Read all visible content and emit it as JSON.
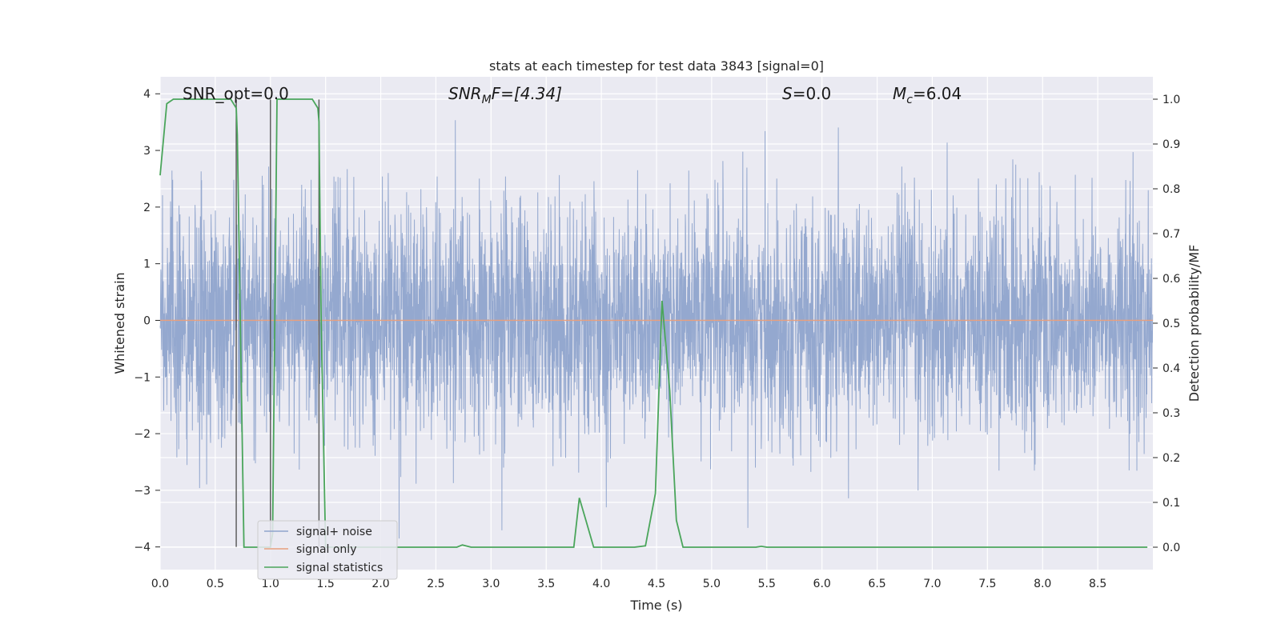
{
  "chart_data": {
    "type": "line",
    "title": "stats at each timestep for test data 3843 [signal=0]",
    "xlabel": "Time (s)",
    "ylabel": "Whitened strain",
    "y2label": "Detection probability/MF",
    "xlim": [
      0,
      9.0
    ],
    "ylim": [
      -4.4,
      4.3
    ],
    "y2lim": [
      -0.05,
      1.05
    ],
    "xticks": [
      "0.0",
      "0.5",
      "1.0",
      "1.5",
      "2.0",
      "2.5",
      "3.0",
      "3.5",
      "4.0",
      "4.5",
      "5.0",
      "5.5",
      "6.0",
      "6.5",
      "7.0",
      "7.5",
      "8.0",
      "8.5"
    ],
    "yticks": [
      "−4",
      "−3",
      "−2",
      "−1",
      "0",
      "1",
      "2",
      "3",
      "4"
    ],
    "y2ticks": [
      "0.0",
      "0.1",
      "0.2",
      "0.3",
      "0.4",
      "0.5",
      "0.6",
      "0.7",
      "0.8",
      "0.9",
      "1.0"
    ],
    "grid": true,
    "legend_position": "lower-left",
    "annotations": {
      "snr_opt": "SNR_opt=0.0",
      "snr_mf_base": "SNR",
      "snr_mf_sub": "M",
      "snr_mf_rest": "F=[4.34]",
      "s_italic": "S",
      "s_rest": "=0.0",
      "mc_base": "M",
      "mc_sub": "c",
      "mc_rest": "=6.04"
    },
    "vertical_lines_x": [
      0.69,
      1.0,
      1.44
    ],
    "series": [
      {
        "name": "signal+ noise",
        "color": "#8fa4cc",
        "axis": "left",
        "noise_std": 1.0,
        "noise_points": 4096,
        "duration": 9.0
      },
      {
        "name": "signal only",
        "color": "#e8a07e",
        "axis": "left",
        "values_constant": 0.0
      },
      {
        "name": "signal statistics",
        "color": "#4aa55b",
        "axis": "right",
        "x": [
          0.0,
          0.06,
          0.12,
          0.2,
          0.3,
          0.4,
          0.5,
          0.6,
          0.64,
          0.69,
          0.7,
          0.76,
          0.82,
          0.9,
          0.97,
          1.0,
          1.02,
          1.06,
          1.1,
          1.2,
          1.3,
          1.38,
          1.43,
          1.44,
          1.46,
          1.5,
          1.56,
          1.7,
          2.0,
          2.5,
          2.69,
          2.74,
          2.82,
          3.0,
          3.5,
          3.75,
          3.8,
          3.86,
          3.93,
          4.0,
          4.3,
          4.4,
          4.49,
          4.55,
          4.62,
          4.68,
          4.74,
          4.82,
          5.0,
          5.4,
          5.45,
          5.5,
          6.0,
          7.0,
          8.0,
          8.5,
          8.95
        ],
        "values": [
          0.83,
          0.99,
          1.0,
          1.0,
          1.0,
          1.0,
          1.0,
          1.0,
          1.0,
          0.98,
          0.92,
          0.0,
          0.0,
          0.0,
          0.0,
          0.0,
          0.03,
          1.0,
          1.0,
          1.0,
          1.0,
          1.0,
          0.98,
          0.95,
          0.5,
          0.0,
          0.0,
          0.0,
          0.0,
          0.0,
          0.0,
          0.005,
          0.0,
          0.0,
          0.0,
          0.0,
          0.11,
          0.06,
          0.0,
          0.0,
          0.0,
          0.003,
          0.12,
          0.55,
          0.35,
          0.06,
          0.0,
          0.0,
          0.0,
          0.0,
          0.002,
          0.0,
          0.0,
          0.0,
          0.0,
          0.0,
          0.0
        ]
      }
    ]
  }
}
